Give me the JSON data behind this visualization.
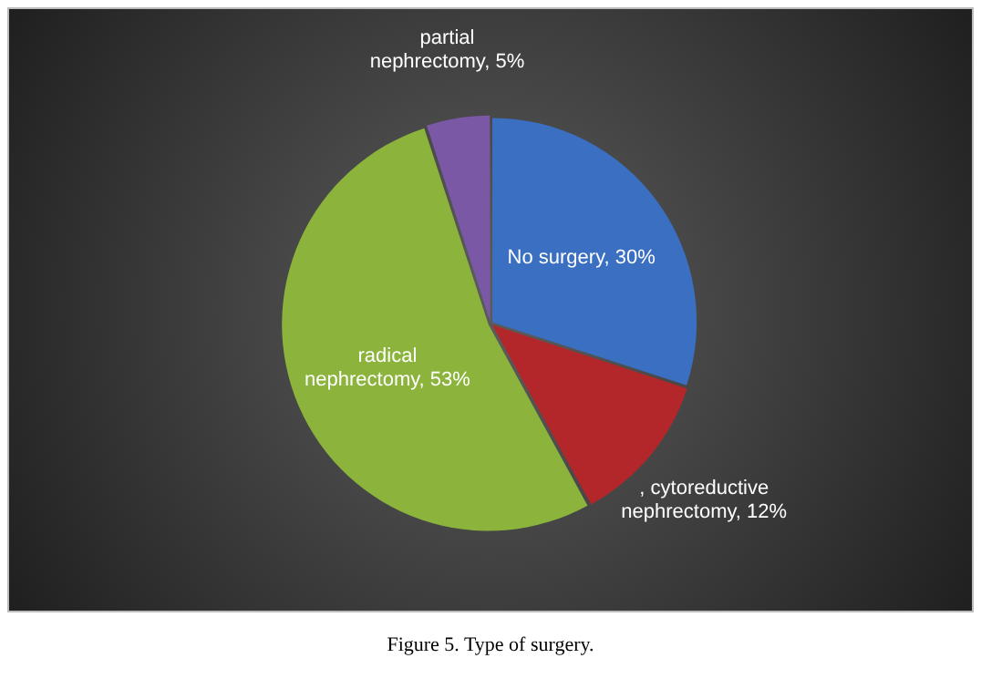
{
  "chart_data": {
    "type": "pie",
    "categories": [
      "No surgery",
      ", cytoreductive nephrectomy",
      "radical nephrectomy",
      "partial nephrectomy"
    ],
    "values": [
      30,
      12,
      53,
      5
    ],
    "colors": [
      "#3b6fc2",
      "#b3272a",
      "#8cb43c",
      "#7b58a6"
    ],
    "value_labels": [
      "30%",
      "12%",
      "53%",
      "5%"
    ],
    "annotations": [
      "Figure 5. Type of surgery."
    ]
  }
}
